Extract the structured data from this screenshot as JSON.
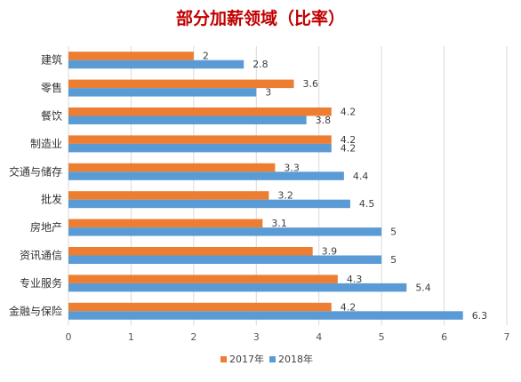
{
  "chart_data": {
    "type": "bar",
    "orientation": "horizontal",
    "title": "部分加薪领域（比率）",
    "xlabel": "",
    "ylabel": "",
    "xlim": [
      0,
      7
    ],
    "xticks": [
      0,
      1,
      2,
      3,
      4,
      5,
      6,
      7
    ],
    "grid": true,
    "legend_position": "bottom",
    "categories": [
      "建筑",
      "零售",
      "餐饮",
      "制造业",
      "交通与储存",
      "批发",
      "房地产",
      "资讯通信",
      "专业服务",
      "金融与保险"
    ],
    "series": [
      {
        "name": "2017年",
        "color": "#ed7d31",
        "values": [
          2,
          3.6,
          4.2,
          4.2,
          3.3,
          3.2,
          3.1,
          3.9,
          4.3,
          4.2
        ]
      },
      {
        "name": "2018年",
        "color": "#5b9bd5",
        "values": [
          2.8,
          3,
          3.8,
          4.2,
          4.4,
          4.5,
          5,
          5,
          5.4,
          6.3
        ]
      }
    ]
  }
}
